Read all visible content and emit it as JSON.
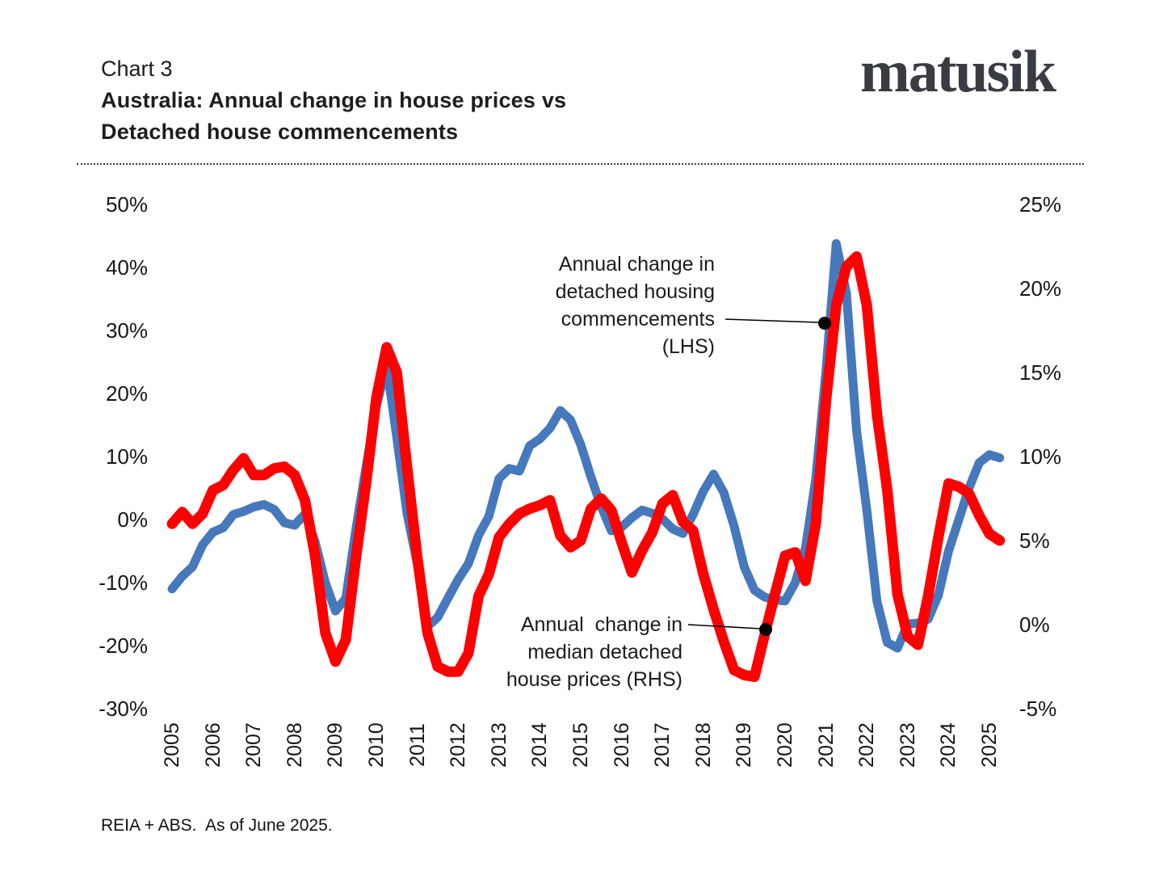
{
  "header": {
    "chart_label": "Chart 3",
    "title_line1": "Australia: Annual change in house prices vs",
    "title_line2": "Detached house commencements",
    "logo": "matusik"
  },
  "annotations": {
    "lhs": {
      "line1": "Annual change in",
      "line2": "detached housing",
      "line3": "commencements",
      "line4": "(LHS)"
    },
    "rhs": {
      "line1": "Annual  change in",
      "line2": "median detached",
      "line3": "house prices (RHS)"
    }
  },
  "footer": {
    "source": "REIA + ABS.  As of June 2025."
  },
  "colors": {
    "commencements_line": "#4678bc",
    "prices_line": "#fe0000",
    "callout": "#000000",
    "text": "#1d1d1d",
    "logo": "#393c42"
  },
  "chart_data": {
    "type": "line",
    "title": "Australia: Annual change in house prices vs Detached house commencements",
    "xlabel": "",
    "ylabel_left": "Annual change in detached housing commencements (LHS)",
    "ylabel_right": "Annual change in median detached house prices (RHS)",
    "grid": false,
    "legend_position": "inline-annotations",
    "left_axis": {
      "min": -30,
      "max": 50,
      "ticks": [
        "50%",
        "40%",
        "30%",
        "20%",
        "10%",
        "0%",
        "-10%",
        "-20%",
        "-30%"
      ]
    },
    "right_axis": {
      "min": -5,
      "max": 25,
      "ticks": [
        "25%",
        "20%",
        "15%",
        "10%",
        "5%",
        "0%",
        "-5%"
      ]
    },
    "x_axis": {
      "years": [
        "2005",
        "2006",
        "2007",
        "2008",
        "2009",
        "2010",
        "2011",
        "2012",
        "2013",
        "2014",
        "2015",
        "2016",
        "2017",
        "2018",
        "2019",
        "2020",
        "2021",
        "2022",
        "2023",
        "2024",
        "2025"
      ]
    },
    "x": [
      2005,
      2005.25,
      2005.5,
      2005.75,
      2006,
      2006.25,
      2006.5,
      2006.75,
      2007,
      2007.25,
      2007.5,
      2007.75,
      2008,
      2008.25,
      2008.5,
      2008.75,
      2009,
      2009.25,
      2009.5,
      2009.75,
      2010,
      2010.25,
      2010.5,
      2010.75,
      2011,
      2011.25,
      2011.5,
      2011.75,
      2012,
      2012.25,
      2012.5,
      2012.75,
      2013,
      2013.25,
      2013.5,
      2013.75,
      2014,
      2014.25,
      2014.5,
      2014.75,
      2015,
      2015.25,
      2015.5,
      2015.75,
      2016,
      2016.25,
      2016.5,
      2016.75,
      2017,
      2017.25,
      2017.5,
      2017.75,
      2018,
      2018.25,
      2018.5,
      2018.75,
      2019,
      2019.25,
      2019.5,
      2019.75,
      2020,
      2020.25,
      2020.5,
      2020.75,
      2021,
      2021.25,
      2021.5,
      2021.75,
      2022,
      2022.25,
      2022.5,
      2022.75,
      2023,
      2023.25,
      2023.5,
      2023.75,
      2024,
      2024.25,
      2024.5,
      2024.75,
      2025,
      2025.25
    ],
    "series": [
      {
        "name": "Annual change in detached housing commencements (LHS)",
        "axis": "left",
        "color": "#4678bc",
        "values": [
          -11,
          -9,
          -7.5,
          -4,
          -2,
          -1.3,
          0.8,
          1.3,
          2,
          2.4,
          1.6,
          -0.5,
          -0.9,
          0.9,
          -3.5,
          -10,
          -14.5,
          -12.5,
          -1.5,
          8.5,
          18,
          24.5,
          13,
          1,
          -7,
          -17,
          -15.5,
          -12.5,
          -9.5,
          -7,
          -2.5,
          0.5,
          6.5,
          8.1,
          7.7,
          11.7,
          12.8,
          14.5,
          17.3,
          15.8,
          11.9,
          6.8,
          2.1,
          -1.8,
          -1.2,
          0.3,
          1.5,
          1,
          0.1,
          -1.5,
          -2.2,
          0.8,
          4.5,
          7.2,
          4.3,
          -1,
          -7.5,
          -11.2,
          -12.3,
          -12.8,
          -12.9,
          -10,
          -4.5,
          6.5,
          23.5,
          43.8,
          36,
          14,
          1.5,
          -13,
          -19.5,
          -20.4,
          -16.6,
          -16.4,
          -15.8,
          -12,
          -5,
          0,
          5,
          9,
          10.3,
          9.8
        ]
      },
      {
        "name": "Annual change in median detached house prices (RHS)",
        "axis": "right",
        "color": "#fe0000",
        "values": [
          6,
          6.7,
          6,
          6.6,
          8,
          8.3,
          9.2,
          9.9,
          8.9,
          8.9,
          9.3,
          9.4,
          8.9,
          7.4,
          4.1,
          -0.5,
          -2.2,
          -0.9,
          4,
          8.5,
          13.5,
          16.5,
          15,
          9.4,
          4,
          -0.5,
          -2.5,
          -2.8,
          -2.8,
          -1.7,
          1.7,
          3,
          5.2,
          6,
          6.6,
          6.9,
          7.1,
          7.4,
          5.3,
          4.6,
          5,
          6.9,
          7.5,
          6.8,
          4.9,
          3.1,
          4.4,
          5.5,
          7.2,
          7.7,
          6.1,
          5.6,
          3,
          0.9,
          -1,
          -2.7,
          -3,
          -3.1,
          -0.6,
          1.8,
          4.1,
          4.3,
          2.6,
          6,
          13.3,
          19,
          21.3,
          21.9,
          19,
          12.5,
          8,
          1.8,
          -0.7,
          -1.2,
          1.7,
          5.2,
          8.4,
          8.2,
          7.8,
          6.5,
          5.4,
          5
        ]
      }
    ]
  }
}
